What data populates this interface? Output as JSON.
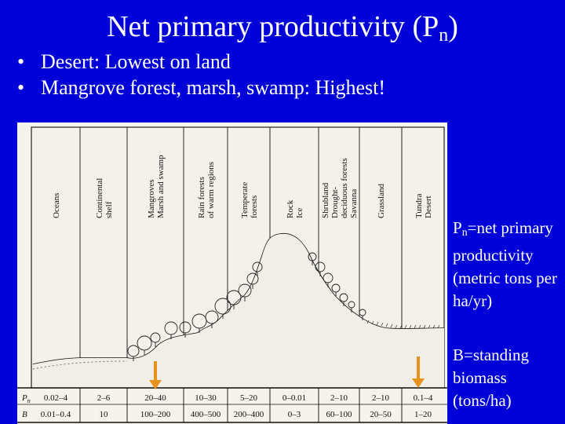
{
  "slide": {
    "title_main": "Net primary productivity (P",
    "title_sub": "n",
    "title_end": ")",
    "bullets": [
      "Desert: Lowest on land",
      "Mangrove forest, marsh, swamp: Highest!"
    ],
    "bullet_glyph": "•"
  },
  "figure": {
    "ecosystems": [
      {
        "lines": [
          "Oceans"
        ]
      },
      {
        "lines": [
          "Continental",
          "shelf"
        ]
      },
      {
        "lines": [
          "Mangroves",
          "Marsh and swamp"
        ]
      },
      {
        "lines": [
          "Rain forests",
          "of warm regions"
        ]
      },
      {
        "lines": [
          "Temperate",
          "forests"
        ]
      },
      {
        "lines": [
          "Rock",
          "Ice"
        ]
      },
      {
        "lines": [
          "Shrubland",
          "Drought-",
          "deciduous forests",
          "Savanna"
        ]
      },
      {
        "lines": [
          "Grassland"
        ]
      },
      {
        "lines": [
          "Tundra",
          "Desert"
        ]
      }
    ],
    "row_labels": {
      "pn_main": "P",
      "pn_sub": "n",
      "b": "B"
    },
    "pn_values": [
      "0.02–4",
      "2–6",
      "20–40",
      "10–30",
      "5–20",
      "0–0.01",
      "2–10",
      "2–10",
      "0.1–4"
    ],
    "b_values": [
      "0.01–0.4",
      "10",
      "100–200",
      "400–500",
      "200–400",
      "0–3",
      "60–100",
      "20–50",
      "1–20"
    ],
    "arrow_color": "#e8921e"
  },
  "notes": {
    "pn_symbol": "P",
    "pn_sub": "n",
    "pn_text": "=net primary productivity (metric tons per ha/yr)",
    "b_text": "B=standing biomass (tons/ha)"
  }
}
